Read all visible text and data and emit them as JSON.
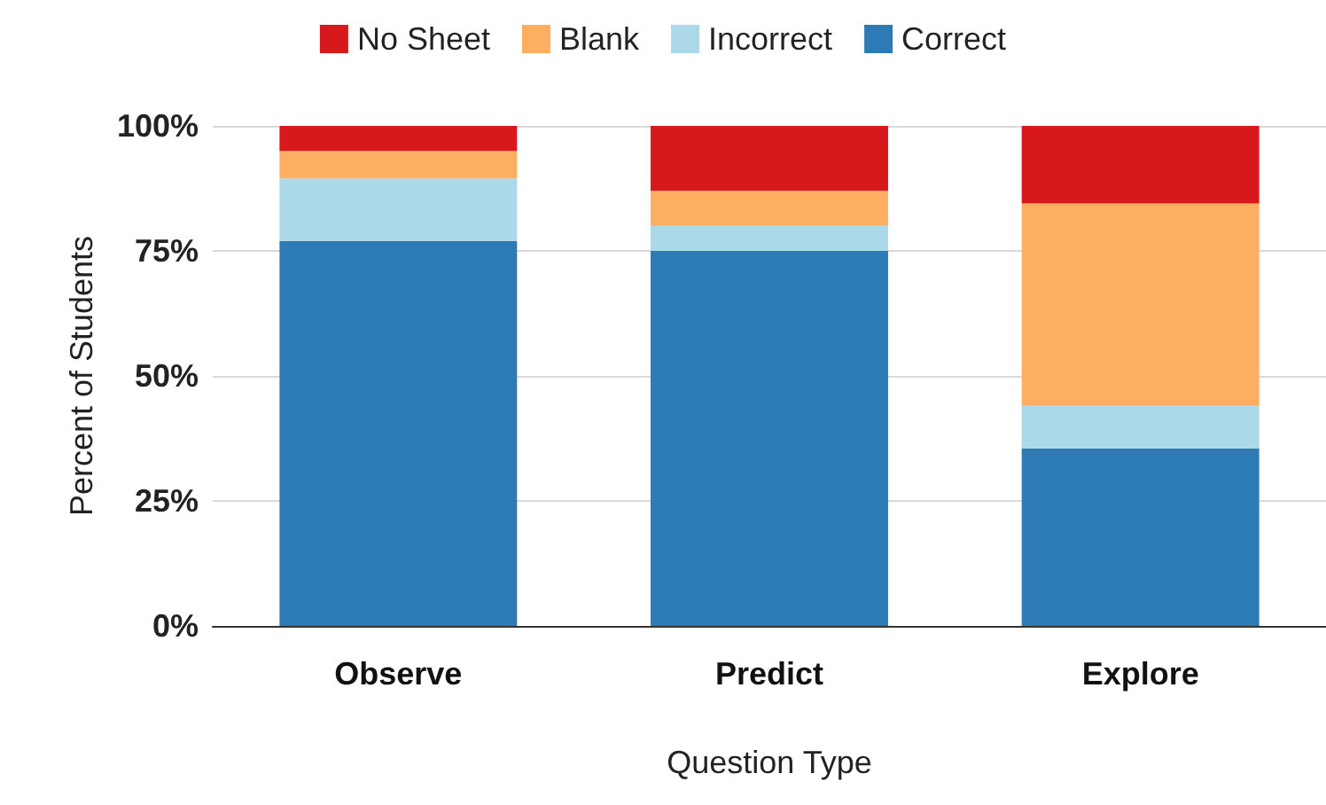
{
  "chart_data": {
    "type": "bar",
    "stacked": true,
    "xlabel": "Question Type",
    "ylabel": "Percent of Students",
    "categories": [
      "Observe",
      "Predict",
      "Explore"
    ],
    "series": [
      {
        "name": "Correct",
        "color": "#2c7bb6",
        "values": [
          77,
          75,
          35.5
        ]
      },
      {
        "name": "Incorrect",
        "color": "#abd9e9",
        "values": [
          12.5,
          5,
          8.5
        ]
      },
      {
        "name": "Blank",
        "color": "#fdae61",
        "values": [
          5.5,
          7,
          40.5
        ]
      },
      {
        "name": "No Sheet",
        "color": "#d7191c",
        "values": [
          5,
          13,
          15.5
        ]
      }
    ],
    "ylim": [
      0,
      100
    ],
    "yticks": [
      {
        "value": 0,
        "label": "0%"
      },
      {
        "value": 25,
        "label": "25%"
      },
      {
        "value": 50,
        "label": "50%"
      },
      {
        "value": 75,
        "label": "75%"
      },
      {
        "value": 100,
        "label": "100%"
      }
    ],
    "grid": "y",
    "legend": "top"
  }
}
